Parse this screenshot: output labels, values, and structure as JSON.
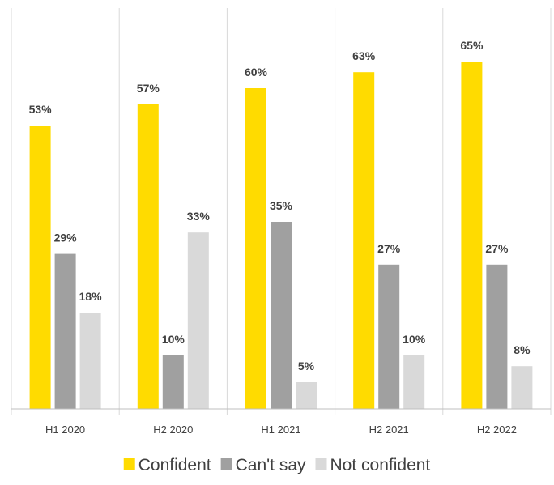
{
  "chart_data": {
    "type": "bar",
    "title": "",
    "xlabel": "",
    "ylabel": "",
    "ylim": [
      0,
      75
    ],
    "grid": false,
    "legend_position": "bottom",
    "categories": [
      "H1 2020",
      "H2 2020",
      "H1 2021",
      "H2 2021",
      "H2 2022"
    ],
    "series": [
      {
        "name": "Confident",
        "color": "#FFDB00",
        "values": [
          53,
          57,
          60,
          63,
          65
        ],
        "labels": [
          "53%",
          "57%",
          "60%",
          "63%",
          "65%"
        ]
      },
      {
        "name": "Can't say",
        "color": "#A0A0A0",
        "values": [
          29,
          10,
          35,
          27,
          27
        ],
        "labels": [
          "29%",
          "10%",
          "35%",
          "27%",
          "27%"
        ]
      },
      {
        "name": "Not confident",
        "color": "#D9D9D9",
        "values": [
          18,
          33,
          5,
          10,
          8
        ],
        "labels": [
          "18%",
          "33%",
          "5%",
          "10%",
          "8%"
        ]
      }
    ]
  }
}
